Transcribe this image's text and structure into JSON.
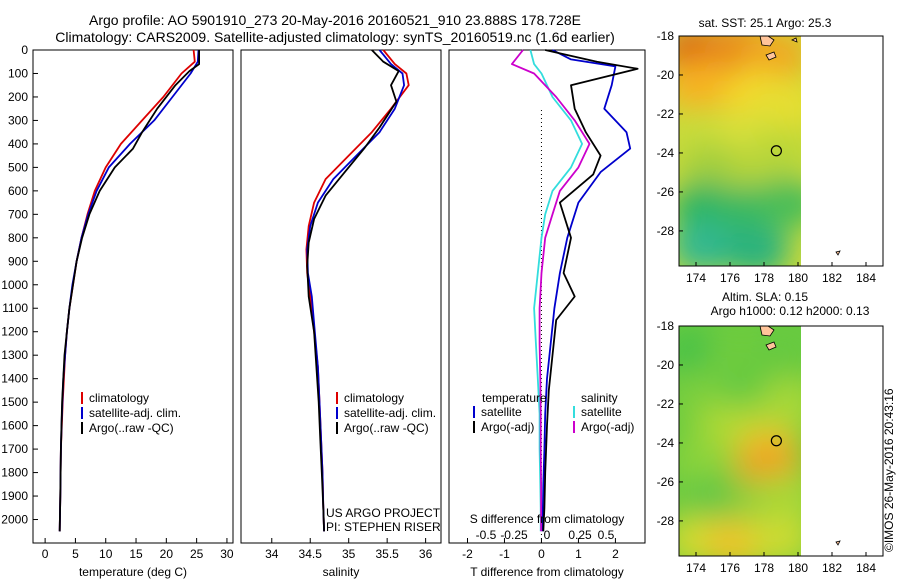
{
  "header": {
    "line1": "Argo profile: AO 5901910_273 20-May-2016 20160521_910 23.888S 178.728E",
    "line2": "Climatology: CARS2009. Satellite-adjusted climatology: synTS_20160519.nc (1.6d earlier)"
  },
  "footer": {
    "project": "US ARGO PROJECT",
    "pi": "PI: STEPHEN RISER",
    "credit": "©IMOS 26-May-2016 20:43:16"
  },
  "colors": {
    "climatology": "#dd0000",
    "satellite": "#0000cc",
    "argo": "#000000",
    "argo_s": "#cc00cc",
    "sat_s": "#33dddd"
  },
  "chart_data": [
    {
      "type": "line",
      "xlabel": "temperature (deg C)",
      "ylabel": "",
      "xlim": [
        -2,
        31
      ],
      "ylim": [
        2100,
        0
      ],
      "xticks": [
        0,
        5,
        10,
        15,
        20,
        25,
        30
      ],
      "yticks": [
        0,
        100,
        200,
        300,
        400,
        500,
        600,
        700,
        800,
        900,
        1000,
        1100,
        1200,
        1300,
        1400,
        1500,
        1600,
        1700,
        1800,
        1900,
        2000
      ],
      "legend": {
        "placement": "lower-center",
        "entries": [
          "climatology",
          "satellite-adj. clim.",
          "Argo(..raw -QC)"
        ]
      },
      "series": [
        {
          "name": "climatology",
          "color": "#dd0000",
          "x": [
            24.5,
            24.7,
            22.5,
            19.5,
            16.0,
            12.5,
            10.0,
            8.2,
            7.0,
            6.0,
            5.2,
            4.6,
            4.0,
            3.6,
            3.3,
            3.1,
            2.9,
            2.75,
            2.6,
            2.5,
            2.4
          ],
          "y": [
            0,
            50,
            100,
            200,
            300,
            400,
            500,
            600,
            700,
            800,
            900,
            1000,
            1100,
            1200,
            1300,
            1400,
            1500,
            1600,
            1700,
            1900,
            2050
          ]
        },
        {
          "name": "satellite-adj. clim.",
          "color": "#0000cc",
          "x": [
            25.3,
            25.2,
            24.0,
            21.0,
            18.0,
            14.0,
            10.5,
            8.5,
            7.1,
            6.0,
            5.2,
            4.5,
            4.0,
            3.6,
            3.3,
            3.0,
            2.85,
            2.7,
            2.6,
            2.5,
            2.4
          ],
          "y": [
            0,
            50,
            100,
            200,
            300,
            400,
            500,
            600,
            700,
            800,
            900,
            1000,
            1100,
            1200,
            1300,
            1400,
            1500,
            1600,
            1700,
            1900,
            2050
          ]
        },
        {
          "name": "Argo(..raw -QC)",
          "color": "#000000",
          "x": [
            25.4,
            25.4,
            23.8,
            21.5,
            18.5,
            16.0,
            14.5,
            11.5,
            9.0,
            7.3,
            6.1,
            5.2,
            4.6,
            4.0,
            3.6,
            3.2,
            3.0,
            2.8,
            2.6,
            2.5,
            2.4
          ],
          "y": [
            0,
            60,
            90,
            150,
            250,
            350,
            420,
            500,
            600,
            700,
            800,
            900,
            1000,
            1100,
            1200,
            1300,
            1400,
            1500,
            1700,
            1900,
            2050
          ]
        }
      ]
    },
    {
      "type": "line",
      "xlabel": "salinity",
      "ylabel": "",
      "xlim": [
        33.6,
        36.2
      ],
      "ylim": [
        2100,
        0
      ],
      "xticks": [
        34,
        34.5,
        35,
        35.5,
        36
      ],
      "legend": {
        "placement": "lower-center",
        "entries": [
          "climatology",
          "satellite-adj. clim.",
          "Argo(..raw -QC)"
        ]
      },
      "series": [
        {
          "name": "climatology",
          "color": "#dd0000",
          "x": [
            35.45,
            35.6,
            35.75,
            35.78,
            35.55,
            35.3,
            35.0,
            34.7,
            34.55,
            34.48,
            34.45,
            34.46,
            34.5,
            34.55,
            34.6,
            34.62,
            34.64,
            34.66,
            34.67,
            34.68
          ],
          "y": [
            0,
            60,
            100,
            150,
            250,
            350,
            450,
            550,
            650,
            750,
            850,
            950,
            1050,
            1200,
            1350,
            1500,
            1650,
            1800,
            1950,
            2050
          ]
        },
        {
          "name": "satellite-adj. clim.",
          "color": "#0000cc",
          "x": [
            35.4,
            35.55,
            35.7,
            35.72,
            35.6,
            35.4,
            35.1,
            34.8,
            34.6,
            34.5,
            34.46,
            34.47,
            34.52,
            34.56,
            34.6,
            34.62,
            34.64,
            34.66,
            34.67,
            34.68
          ],
          "y": [
            0,
            60,
            100,
            150,
            250,
            350,
            450,
            550,
            650,
            750,
            850,
            950,
            1050,
            1200,
            1350,
            1500,
            1650,
            1800,
            1950,
            2050
          ]
        },
        {
          "name": "Argo(..raw -QC)",
          "color": "#000000",
          "x": [
            35.3,
            35.45,
            35.65,
            35.55,
            35.62,
            35.4,
            35.2,
            34.95,
            34.7,
            34.55,
            34.48,
            34.46,
            34.48,
            34.55,
            34.58,
            34.61,
            34.63,
            34.65,
            34.67,
            34.68
          ],
          "y": [
            0,
            50,
            90,
            150,
            220,
            330,
            420,
            520,
            620,
            720,
            820,
            920,
            1050,
            1200,
            1350,
            1500,
            1650,
            1800,
            1950,
            2050
          ]
        }
      ]
    },
    {
      "type": "line",
      "xlabel": "T difference from climatology",
      "x2label": "S difference from climatology",
      "ylabel": "",
      "xlim": [
        -2.5,
        2.8
      ],
      "ylim": [
        2100,
        0
      ],
      "xticks": [
        -2,
        -1,
        0,
        1,
        2
      ],
      "x2ticks": [
        "-0.5",
        "-0.25",
        "0",
        "0.25",
        "0.5"
      ],
      "legend": {
        "placement": "lower-center",
        "headers": [
          "temperature",
          "salinity"
        ],
        "entries": [
          "satellite",
          "Argo(-adj)",
          "satellite",
          "Argo(-adj)"
        ]
      },
      "series": [
        {
          "name": "satellite",
          "group": "temperature",
          "color": "#0000cc",
          "x": [
            0.3,
            0.8,
            2.0,
            1.9,
            1.7,
            2.3,
            2.4,
            1.6,
            1.0,
            0.7,
            0.5,
            0.35,
            0.25,
            0.15,
            0.1,
            0.08,
            0.05,
            0.04,
            0.03
          ],
          "y": [
            0,
            40,
            70,
            150,
            250,
            350,
            420,
            520,
            650,
            800,
            950,
            1100,
            1250,
            1400,
            1550,
            1700,
            1850,
            1950,
            2050
          ]
        },
        {
          "name": "Argo(-adj)",
          "group": "temperature",
          "color": "#000000",
          "x": [
            0.1,
            1.5,
            2.6,
            0.8,
            0.9,
            1.2,
            1.6,
            1.4,
            0.5,
            0.8,
            0.6,
            0.9,
            0.4,
            0.3,
            0.2,
            0.15,
            0.1,
            0.08,
            0.05
          ],
          "y": [
            0,
            50,
            80,
            150,
            250,
            350,
            450,
            530,
            650,
            800,
            950,
            1050,
            1150,
            1300,
            1450,
            1600,
            1800,
            1950,
            2050
          ]
        },
        {
          "name": "satellite",
          "group": "salinity",
          "color": "#33dddd",
          "x": [
            -0.3,
            -0.2,
            0.0,
            0.3,
            0.8,
            1.1,
            0.8,
            0.3,
            0.1,
            0.0,
            -0.1,
            -0.2,
            -0.15,
            -0.1,
            -0.05,
            -0.05,
            -0.03,
            -0.02,
            -0.02
          ],
          "y": [
            0,
            60,
            100,
            200,
            300,
            400,
            500,
            600,
            700,
            800,
            950,
            1100,
            1250,
            1400,
            1550,
            1700,
            1850,
            1950,
            2050
          ]
        },
        {
          "name": "Argo(-adj)",
          "group": "salinity",
          "color": "#cc00cc",
          "x": [
            -0.5,
            -0.8,
            -0.2,
            0.4,
            0.9,
            1.3,
            1.0,
            0.5,
            0.3,
            0.1,
            0.0,
            -0.05,
            -0.05,
            -0.03,
            -0.02,
            -0.02,
            -0.01,
            -0.01,
            -0.01
          ],
          "y": [
            0,
            60,
            100,
            200,
            300,
            400,
            500,
            600,
            700,
            800,
            950,
            1100,
            1250,
            1400,
            1550,
            1700,
            1850,
            1950,
            2050
          ]
        }
      ]
    },
    {
      "type": "heatmap",
      "title": "sat. SST: 25.1  Argo: 25.3",
      "xlim": [
        173,
        185
      ],
      "ylim": [
        -29.8,
        -18
      ],
      "xticks": [
        174,
        176,
        178,
        180,
        182,
        184
      ],
      "yticks": [
        -18,
        -20,
        -22,
        -24,
        -26,
        -28
      ],
      "data_extent_lon": [
        173,
        180
      ],
      "marker": {
        "lon": 178.728,
        "lat": -23.888
      },
      "blobs": [
        {
          "lon": 174.0,
          "lat": -18.8,
          "color": "#dd6a14"
        },
        {
          "lon": 176.5,
          "lat": -18.6,
          "color": "#e88a1a"
        },
        {
          "lon": 178.6,
          "lat": -19.0,
          "color": "#f0a820"
        },
        {
          "lon": 174.2,
          "lat": -20.6,
          "color": "#f6b224"
        },
        {
          "lon": 177.5,
          "lat": -21.0,
          "color": "#f5d52a"
        },
        {
          "lon": 179.2,
          "lat": -21.5,
          "color": "#e6de32"
        },
        {
          "lon": 174.5,
          "lat": -23.0,
          "color": "#c8dc3a"
        },
        {
          "lon": 177.0,
          "lat": -23.2,
          "color": "#d8e03a"
        },
        {
          "lon": 179.0,
          "lat": -24.0,
          "color": "#bcd838"
        },
        {
          "lon": 175.0,
          "lat": -24.8,
          "color": "#a4cf3c"
        },
        {
          "lon": 178.0,
          "lat": -25.2,
          "color": "#b6d43a"
        },
        {
          "lon": 174.5,
          "lat": -26.8,
          "color": "#2eb562"
        },
        {
          "lon": 177.2,
          "lat": -27.0,
          "color": "#37b860"
        },
        {
          "lon": 179.4,
          "lat": -26.6,
          "color": "#48bd58"
        },
        {
          "lon": 174.5,
          "lat": -28.8,
          "color": "#32b890"
        },
        {
          "lon": 177.5,
          "lat": -29.0,
          "color": "#2bb27e"
        }
      ]
    },
    {
      "type": "heatmap",
      "title": "Altim. SLA: 0.15",
      "subtitle": "Argo h1000: 0.12 h2000: 0.13",
      "xlim": [
        173,
        185
      ],
      "ylim": [
        -29.8,
        -18
      ],
      "xticks": [
        174,
        176,
        178,
        180,
        182,
        184
      ],
      "yticks": [
        -18,
        -20,
        -22,
        -24,
        -26,
        -28
      ],
      "data_extent_lon": [
        173,
        180
      ],
      "marker": {
        "lon": 178.728,
        "lat": -23.888
      },
      "blobs": [
        {
          "lon": 174.3,
          "lat": -19.5,
          "color": "#3ec048"
        },
        {
          "lon": 176.6,
          "lat": -19.2,
          "color": "#70cc3e"
        },
        {
          "lon": 179.2,
          "lat": -19.3,
          "color": "#66c940"
        },
        {
          "lon": 174.5,
          "lat": -21.5,
          "color": "#7ccf3d"
        },
        {
          "lon": 177.4,
          "lat": -21.8,
          "color": "#52c644"
        },
        {
          "lon": 179.5,
          "lat": -22.0,
          "color": "#a8d838"
        },
        {
          "lon": 176.0,
          "lat": -23.3,
          "color": "#b2da36"
        },
        {
          "lon": 178.3,
          "lat": -24.5,
          "color": "#f0c826"
        },
        {
          "lon": 178.2,
          "lat": -25.3,
          "color": "#f19c22"
        },
        {
          "lon": 174.6,
          "lat": -25.0,
          "color": "#8ed43a"
        },
        {
          "lon": 175.3,
          "lat": -27.0,
          "color": "#56c546"
        },
        {
          "lon": 177.8,
          "lat": -27.2,
          "color": "#86d23c"
        },
        {
          "lon": 179.5,
          "lat": -26.8,
          "color": "#a6d738"
        },
        {
          "lon": 174.0,
          "lat": -29.0,
          "color": "#d2dc30"
        },
        {
          "lon": 176.5,
          "lat": -29.2,
          "color": "#f2c228"
        },
        {
          "lon": 179.0,
          "lat": -29.0,
          "color": "#cedb32"
        }
      ]
    }
  ]
}
